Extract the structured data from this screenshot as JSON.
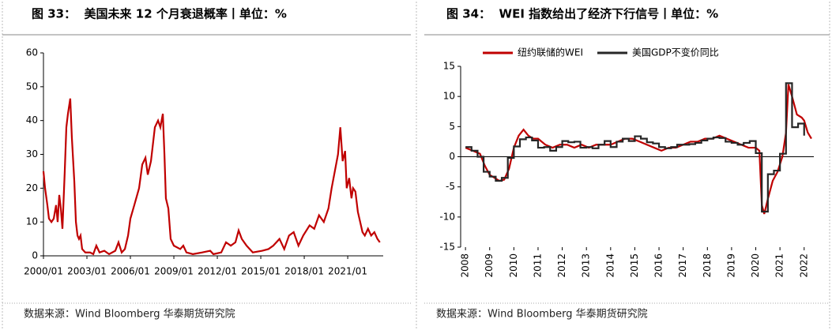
{
  "chart_data": [
    {
      "type": "line",
      "title": "图 33：  美国未来 12 个月衰退概率丨单位：%",
      "source": "数据来源：Wind Bloomberg 华泰期货研究院",
      "xlim": [
        2000,
        2023.45
      ],
      "xticks": [
        {
          "value": 2000,
          "label": "2000/01"
        },
        {
          "value": 2003,
          "label": "2003/01"
        },
        {
          "value": 2006,
          "label": "2006/01"
        },
        {
          "value": 2009,
          "label": "2009/01"
        },
        {
          "value": 2012,
          "label": "2012/01"
        },
        {
          "value": 2015,
          "label": "2015/01"
        },
        {
          "value": 2018,
          "label": "2018/01"
        },
        {
          "value": 2021,
          "label": "2021/01"
        }
      ],
      "ylim": [
        0,
        60
      ],
      "yticks": [
        0,
        10,
        20,
        30,
        40,
        50,
        60
      ],
      "series": [
        {
          "color": "#c00000",
          "x": [
            2000.0,
            2000.11,
            2000.27,
            2000.38,
            2000.55,
            2000.71,
            2000.87,
            2000.98,
            2001.09,
            2001.2,
            2001.31,
            2001.47,
            2001.58,
            2001.69,
            2001.85,
            2001.96,
            2002.13,
            2002.24,
            2002.35,
            2002.45,
            2002.56,
            2002.67,
            2002.89,
            2003.22,
            2003.44,
            2003.65,
            2003.87,
            2004.2,
            2004.53,
            2004.96,
            2005.18,
            2005.4,
            2005.62,
            2005.84,
            2006.0,
            2006.27,
            2006.6,
            2006.82,
            2007.04,
            2007.2,
            2007.42,
            2007.69,
            2007.91,
            2008.07,
            2008.24,
            2008.35,
            2008.45,
            2008.62,
            2008.78,
            2009.0,
            2009.44,
            2009.65,
            2009.87,
            2010.31,
            2010.96,
            2011.51,
            2011.73,
            2012.27,
            2012.6,
            2012.93,
            2013.25,
            2013.47,
            2013.69,
            2014.02,
            2014.45,
            2015.1,
            2015.53,
            2015.86,
            2016.29,
            2016.62,
            2016.95,
            2017.27,
            2017.6,
            2017.93,
            2018.37,
            2018.69,
            2019.02,
            2019.35,
            2019.67,
            2019.89,
            2020.11,
            2020.33,
            2020.49,
            2020.65,
            2020.82,
            2020.93,
            2021.1,
            2021.26,
            2021.37,
            2021.53,
            2021.7,
            2021.86,
            2022.02,
            2022.18,
            2022.4,
            2022.62,
            2022.84,
            2023.05,
            2023.22
          ],
          "values": [
            25,
            20,
            15,
            11,
            10,
            11,
            15,
            10,
            18,
            14,
            8,
            25,
            38,
            42,
            46.5,
            35,
            22,
            10,
            6,
            5,
            6,
            2,
            1,
            1,
            0.5,
            3,
            1,
            1.5,
            0.5,
            1.5,
            4,
            1,
            2,
            6,
            11,
            15,
            20,
            27,
            29,
            24,
            28,
            38,
            40,
            38,
            42,
            30,
            17,
            14,
            5,
            3,
            2,
            3,
            1,
            0.5,
            1,
            1.5,
            0.5,
            1,
            4,
            3,
            4,
            7.5,
            5,
            3,
            1,
            1.5,
            2,
            3,
            5,
            2,
            6,
            7,
            3,
            6,
            9,
            8,
            12,
            10,
            14,
            20,
            25,
            30,
            38,
            28,
            31,
            20,
            23,
            17,
            20,
            19,
            13,
            10,
            7,
            6,
            8,
            6,
            7,
            5,
            4
          ]
        }
      ]
    },
    {
      "type": "line",
      "title": "图 34：  WEI 指数给出了经济下行信号丨单位：%",
      "source": "数据来源：Wind Bloomberg 华泰期货研究院",
      "legend": "top",
      "xlim": [
        2007.8,
        2022.4
      ],
      "xticks": [
        2008,
        2009,
        2010,
        2011,
        2012,
        2013,
        2014,
        2015,
        2016,
        2017,
        2018,
        2019,
        2020,
        2021,
        2022
      ],
      "ylim": [
        -15,
        15
      ],
      "yticks": [
        -15,
        -10,
        -5,
        0,
        5,
        10,
        15
      ],
      "series": [
        {
          "name": "纽约联储的WEI",
          "color": "#c00000",
          "x": [
            2008.0,
            2008.3,
            2008.6,
            2008.8,
            2009.0,
            2009.2,
            2009.4,
            2009.6,
            2009.8,
            2010.0,
            2010.2,
            2010.4,
            2010.6,
            2010.8,
            2011.0,
            2011.3,
            2011.6,
            2011.9,
            2012.2,
            2012.5,
            2012.8,
            2013.1,
            2013.4,
            2013.7,
            2014.0,
            2014.3,
            2014.6,
            2014.9,
            2015.2,
            2015.5,
            2015.8,
            2016.1,
            2016.4,
            2016.7,
            2017.0,
            2017.3,
            2017.6,
            2017.9,
            2018.2,
            2018.5,
            2018.8,
            2019.1,
            2019.4,
            2019.7,
            2020.0,
            2020.15,
            2020.25,
            2020.35,
            2020.5,
            2020.7,
            2020.9,
            2021.1,
            2021.25,
            2021.35,
            2021.5,
            2021.7,
            2021.9,
            2022.0,
            2022.15,
            2022.3
          ],
          "values": [
            1.5,
            1,
            0.5,
            -1.5,
            -3,
            -3.5,
            -4,
            -3.8,
            -2,
            1.5,
            3.5,
            4.5,
            3.5,
            3,
            3,
            2,
            1.5,
            2,
            2,
            1.5,
            2,
            1.5,
            2,
            2,
            2,
            2.5,
            3,
            3,
            2.5,
            2,
            1.5,
            1,
            1.5,
            1.5,
            2,
            2.5,
            2.5,
            3,
            3,
            3.5,
            3,
            2.5,
            2,
            1.5,
            1.5,
            1,
            -8,
            -9.5,
            -7,
            -4,
            -2.5,
            0,
            4,
            12,
            10,
            7,
            6.5,
            6,
            4,
            3
          ]
        },
        {
          "name": "美国GDP不变价同比",
          "color": "#262626",
          "step": true,
          "x": [
            2008.0,
            2008.25,
            2008.5,
            2008.75,
            2009.0,
            2009.25,
            2009.5,
            2009.75,
            2010.0,
            2010.25,
            2010.5,
            2010.75,
            2011.0,
            2011.25,
            2011.5,
            2011.75,
            2012.0,
            2012.25,
            2012.5,
            2012.75,
            2013.0,
            2013.25,
            2013.5,
            2013.75,
            2014.0,
            2014.25,
            2014.5,
            2014.75,
            2015.0,
            2015.25,
            2015.5,
            2015.75,
            2016.0,
            2016.25,
            2016.5,
            2016.75,
            2017.0,
            2017.25,
            2017.5,
            2017.75,
            2018.0,
            2018.25,
            2018.5,
            2018.75,
            2019.0,
            2019.25,
            2019.5,
            2019.75,
            2020.0,
            2020.25,
            2020.5,
            2020.75,
            2021.0,
            2021.25,
            2021.5,
            2021.75,
            2022.0
          ],
          "values": [
            1.6,
            1.0,
            0,
            -2.5,
            -3.3,
            -4.0,
            -3.5,
            -0.2,
            1.7,
            2.9,
            3.2,
            2.7,
            1.5,
            1.6,
            1.0,
            1.6,
            2.6,
            2.4,
            2.5,
            1.5,
            1.6,
            1.4,
            2.0,
            2.6,
            1.6,
            2.5,
            3.0,
            2.6,
            3.4,
            3.0,
            2.4,
            2.2,
            1.6,
            1.4,
            1.6,
            2.0,
            2.0,
            2.1,
            2.3,
            2.7,
            3.0,
            3.2,
            3.1,
            2.5,
            2.3,
            2.0,
            2.3,
            2.6,
            0.6,
            -9.1,
            -2.9,
            -2.3,
            0.5,
            12.2,
            4.9,
            5.5,
            3.5
          ]
        }
      ]
    }
  ]
}
